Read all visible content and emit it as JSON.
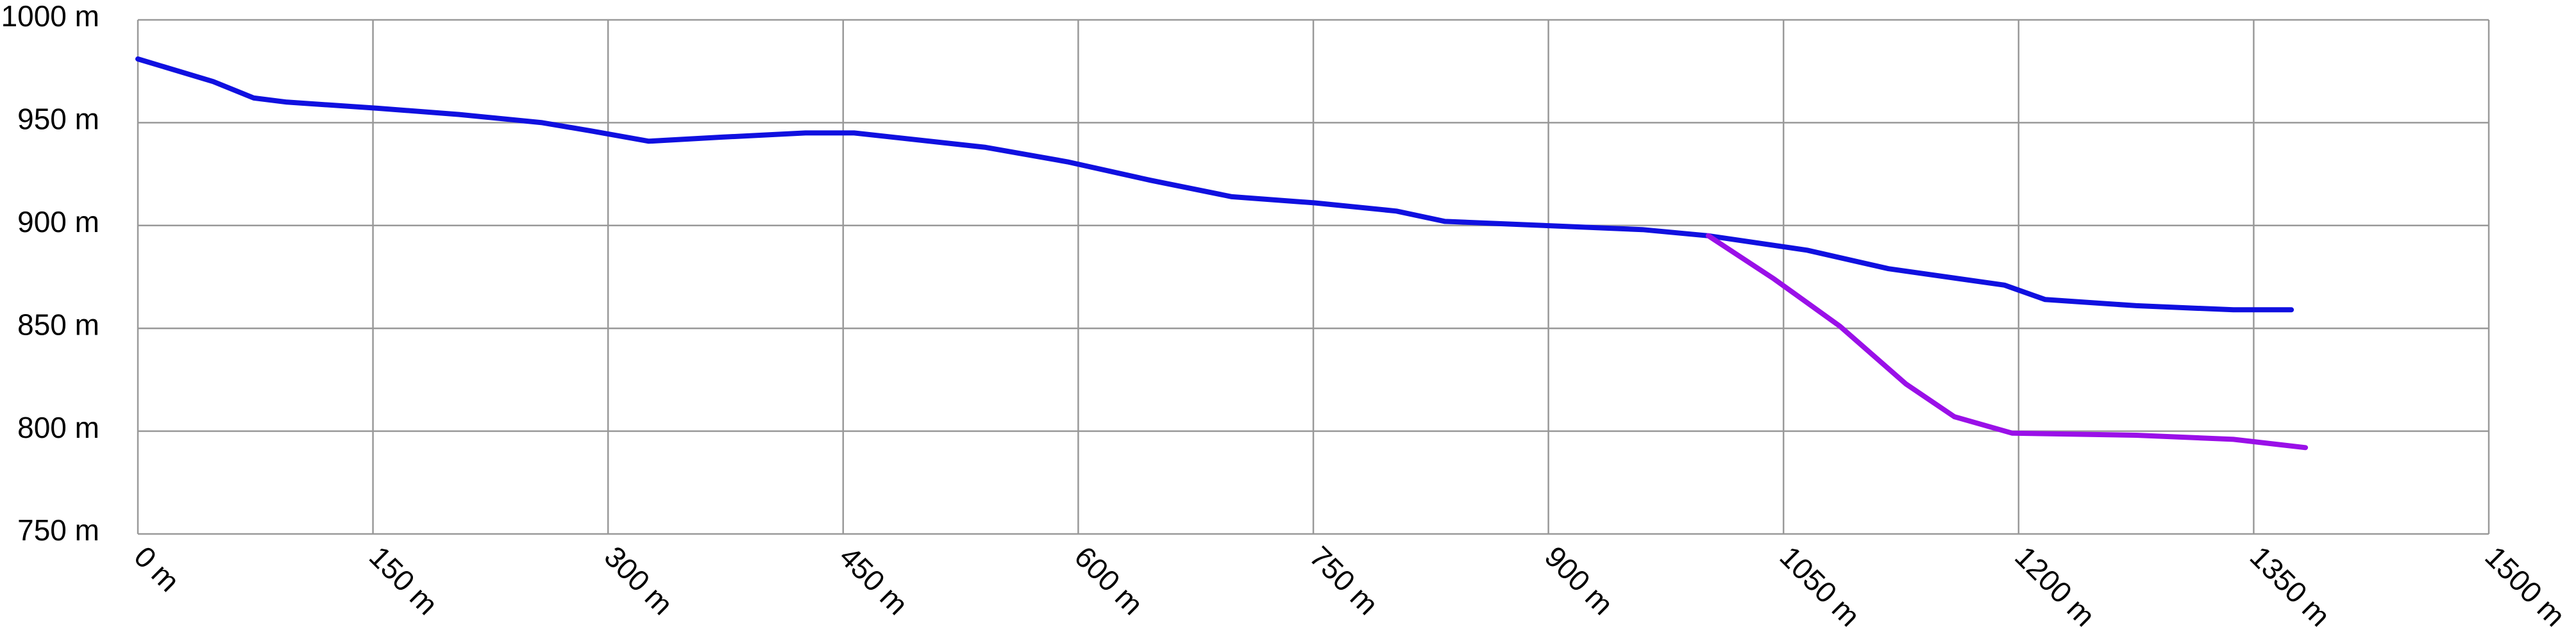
{
  "chart_data": {
    "type": "line",
    "xlim": [
      0,
      1500
    ],
    "xticks": [
      {
        "value": 0,
        "label": "0 m"
      },
      {
        "value": 150,
        "label": "150 m"
      },
      {
        "value": 300,
        "label": "300 m"
      },
      {
        "value": 450,
        "label": "450 m"
      },
      {
        "value": 600,
        "label": "600 m"
      },
      {
        "value": 750,
        "label": "750 m"
      },
      {
        "value": 900,
        "label": "900 m"
      },
      {
        "value": 1050,
        "label": "1050 m"
      },
      {
        "value": 1200,
        "label": "1200 m"
      },
      {
        "value": 1350,
        "label": "1350 m"
      },
      {
        "value": 1500,
        "label": "1500 m"
      }
    ],
    "ylim": [
      750,
      1000
    ],
    "yticks": [
      {
        "value": 750,
        "label": "750 m"
      },
      {
        "value": 800,
        "label": "800 m"
      },
      {
        "value": 850,
        "label": "850 m"
      },
      {
        "value": 900,
        "label": "900 m"
      },
      {
        "value": 950,
        "label": "950 m"
      },
      {
        "value": 1000,
        "label": "1000 m"
      }
    ],
    "grid": true,
    "series": [
      {
        "color": "#1010e0",
        "x": [
          0,
          48,
          74,
          95,
          153,
          205,
          258,
          289,
          326,
          373,
          426,
          457,
          541,
          593,
          646,
          698,
          751,
          803,
          834,
          897,
          960,
          1002,
          1065,
          1117,
          1191,
          1217,
          1275,
          1337,
          1374
        ],
        "values": [
          981,
          970,
          962,
          960,
          957,
          954,
          950,
          946,
          941,
          943,
          945,
          945,
          938,
          931,
          922,
          914,
          911,
          907,
          902,
          900,
          898,
          895,
          888,
          879,
          871,
          864,
          861,
          859,
          859
        ]
      },
      {
        "color": "#9a10e8",
        "x": [
          1002,
          1044,
          1086,
          1128,
          1159,
          1196,
          1275,
          1337,
          1383
        ],
        "values": [
          895,
          874,
          851,
          823,
          807,
          799,
          798,
          796,
          792
        ]
      }
    ]
  }
}
